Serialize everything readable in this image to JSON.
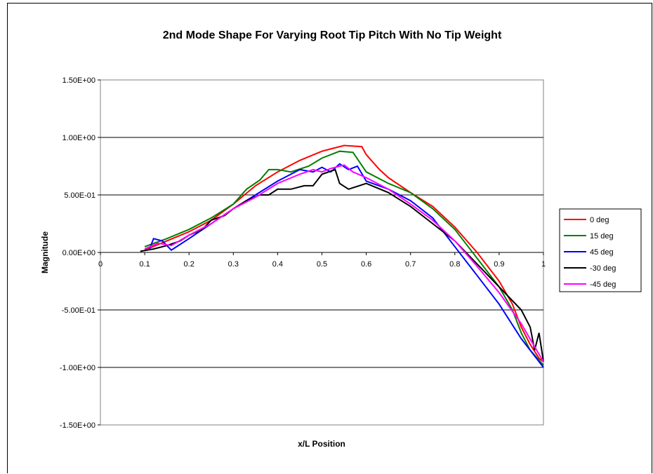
{
  "chart_data": {
    "type": "line",
    "title": "2nd Mode Shape For Varying Root Tip Pitch With No Tip Weight",
    "xlabel": "x/L Position",
    "ylabel": "Magnitude",
    "xlim": [
      0,
      1
    ],
    "ylim": [
      -1.5,
      1.5
    ],
    "x_ticks": [
      "0",
      "0.1",
      "0.2",
      "0.3",
      "0.4",
      "0.5",
      "0.6",
      "0.7",
      "0.8",
      "0.9",
      "1"
    ],
    "x_tick_values": [
      0,
      0.1,
      0.2,
      0.3,
      0.4,
      0.5,
      0.6,
      0.7,
      0.8,
      0.9,
      1
    ],
    "y_ticks": [
      "1.50E+00",
      "1.00E+00",
      "5.00E-01",
      "0.00E+00",
      "-5.00E-01",
      "-1.00E+00",
      "-1.50E+00"
    ],
    "y_tick_values": [
      1.5,
      1.0,
      0.5,
      0.0,
      -0.5,
      -1.0,
      -1.5
    ],
    "grid": "horizontal major gridlines",
    "legend_position": "right",
    "series": [
      {
        "name": "0 deg",
        "color": "#ff0000",
        "x": [
          0.1,
          0.15,
          0.2,
          0.25,
          0.3,
          0.35,
          0.4,
          0.45,
          0.5,
          0.52,
          0.55,
          0.59,
          0.6,
          0.63,
          0.65,
          0.7,
          0.75,
          0.8,
          0.85,
          0.9,
          0.93,
          0.95,
          0.97,
          0.99,
          1.0
        ],
        "y": [
          0.02,
          0.1,
          0.18,
          0.28,
          0.42,
          0.58,
          0.7,
          0.8,
          0.88,
          0.9,
          0.93,
          0.92,
          0.85,
          0.72,
          0.65,
          0.52,
          0.4,
          0.22,
          0.0,
          -0.25,
          -0.45,
          -0.65,
          -0.8,
          -0.92,
          -0.95
        ]
      },
      {
        "name": "15 deg",
        "color": "#008000",
        "x": [
          0.1,
          0.15,
          0.2,
          0.25,
          0.3,
          0.33,
          0.36,
          0.38,
          0.4,
          0.43,
          0.47,
          0.5,
          0.54,
          0.57,
          0.6,
          0.65,
          0.7,
          0.75,
          0.8,
          0.85,
          0.9,
          0.93,
          0.95,
          0.97,
          1.0
        ],
        "y": [
          0.05,
          0.12,
          0.2,
          0.3,
          0.42,
          0.55,
          0.63,
          0.72,
          0.72,
          0.7,
          0.75,
          0.82,
          0.88,
          0.87,
          0.7,
          0.6,
          0.52,
          0.38,
          0.2,
          -0.05,
          -0.3,
          -0.5,
          -0.7,
          -0.85,
          -0.98
        ]
      },
      {
        "name": "45 deg",
        "color": "#0000ff",
        "x": [
          0.11,
          0.12,
          0.14,
          0.16,
          0.2,
          0.25,
          0.3,
          0.35,
          0.4,
          0.45,
          0.48,
          0.5,
          0.52,
          0.54,
          0.56,
          0.58,
          0.6,
          0.65,
          0.7,
          0.75,
          0.8,
          0.85,
          0.9,
          0.95,
          0.98,
          1.0
        ],
        "y": [
          0.02,
          0.12,
          0.1,
          0.02,
          0.12,
          0.25,
          0.38,
          0.5,
          0.62,
          0.72,
          0.7,
          0.74,
          0.7,
          0.77,
          0.72,
          0.75,
          0.62,
          0.55,
          0.45,
          0.3,
          0.05,
          -0.2,
          -0.45,
          -0.75,
          -0.9,
          -1.0
        ]
      },
      {
        "name": "-30 deg",
        "color": "#000000",
        "x": [
          0.09,
          0.12,
          0.15,
          0.18,
          0.2,
          0.23,
          0.25,
          0.28,
          0.3,
          0.33,
          0.36,
          0.38,
          0.4,
          0.43,
          0.46,
          0.48,
          0.5,
          0.53,
          0.54,
          0.56,
          0.6,
          0.65,
          0.7,
          0.75,
          0.8,
          0.85,
          0.9,
          0.95,
          0.97,
          0.98,
          0.99,
          1.0
        ],
        "y": [
          0.01,
          0.03,
          0.06,
          0.1,
          0.15,
          0.2,
          0.28,
          0.32,
          0.38,
          0.45,
          0.5,
          0.5,
          0.55,
          0.55,
          0.58,
          0.58,
          0.68,
          0.72,
          0.6,
          0.55,
          0.6,
          0.52,
          0.4,
          0.25,
          0.1,
          -0.1,
          -0.3,
          -0.5,
          -0.65,
          -0.85,
          -0.7,
          -0.95
        ]
      },
      {
        "name": "-45 deg",
        "color": "#ff00ff",
        "x": [
          0.1,
          0.13,
          0.16,
          0.2,
          0.25,
          0.3,
          0.35,
          0.4,
          0.45,
          0.48,
          0.5,
          0.52,
          0.55,
          0.57,
          0.6,
          0.65,
          0.7,
          0.75,
          0.8,
          0.85,
          0.9,
          0.95,
          0.98,
          1.0
        ],
        "y": [
          0.03,
          0.08,
          0.06,
          0.15,
          0.25,
          0.38,
          0.48,
          0.6,
          0.68,
          0.72,
          0.7,
          0.73,
          0.76,
          0.7,
          0.65,
          0.55,
          0.42,
          0.28,
          0.1,
          -0.12,
          -0.35,
          -0.62,
          -0.82,
          -0.95
        ]
      }
    ]
  }
}
